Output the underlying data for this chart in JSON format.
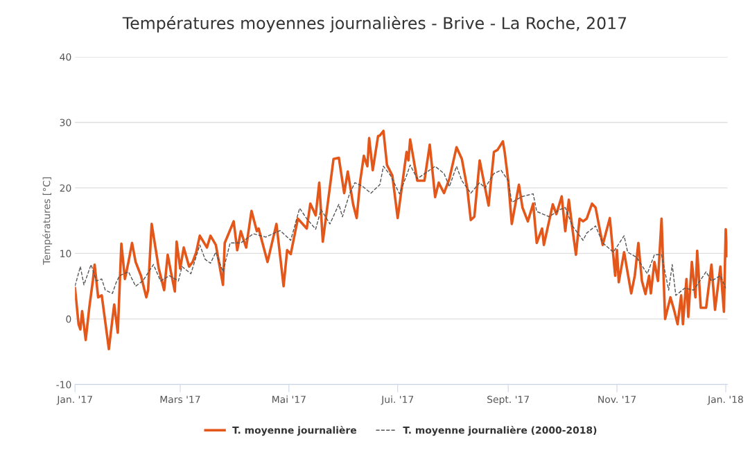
{
  "chart_data": {
    "type": "line",
    "title": "Températures moyennes journalières - Brive - La Roche, 2017",
    "ylabel": "Températures [°C]",
    "xlim": [
      "2017-01-01",
      "2018-01-02"
    ],
    "xticks": [
      {
        "value": "2017-01-01",
        "label": "Jan. '17"
      },
      {
        "value": "2017-03-01",
        "label": "Mars '17"
      },
      {
        "value": "2017-05-01",
        "label": "Mai '17"
      },
      {
        "value": "2017-07-01",
        "label": "Jui. '17"
      },
      {
        "value": "2017-09-01",
        "label": "Sept. '17"
      },
      {
        "value": "2017-11-01",
        "label": "Nov. '17"
      },
      {
        "value": "2018-01-01",
        "label": "Jan. '18"
      }
    ],
    "ylim": [
      -10,
      40
    ],
    "yticks": [
      -10,
      0,
      10,
      20,
      30,
      40
    ],
    "grid": "y",
    "legend": "bottom",
    "series": [
      {
        "name": "T. moyenne journalière",
        "color": "#e4571b",
        "line_style": "solid",
        "x": [
          "2017-01-01",
          "2017-01-03",
          "2017-01-04",
          "2017-01-05",
          "2017-01-07",
          "2017-01-09",
          "2017-01-11",
          "2017-01-12",
          "2017-01-14",
          "2017-01-16",
          "2017-01-20",
          "2017-01-22",
          "2017-01-23",
          "2017-01-25",
          "2017-01-27",
          "2017-01-29",
          "2017-01-31",
          "2017-02-02",
          "2017-02-04",
          "2017-02-07",
          "2017-02-10",
          "2017-02-11",
          "2017-02-13",
          "2017-02-17",
          "2017-02-20",
          "2017-02-22",
          "2017-02-24",
          "2017-02-26",
          "2017-02-27",
          "2017-03-01",
          "2017-03-03",
          "2017-03-06",
          "2017-03-08",
          "2017-03-10",
          "2017-03-12",
          "2017-03-16",
          "2017-03-18",
          "2017-03-21",
          "2017-03-25",
          "2017-03-26",
          "2017-03-31",
          "2017-04-02",
          "2017-04-04",
          "2017-04-07",
          "2017-04-10",
          "2017-04-13",
          "2017-04-14",
          "2017-04-19",
          "2017-04-24",
          "2017-04-28",
          "2017-04-30",
          "2017-05-02",
          "2017-05-06",
          "2017-05-11",
          "2017-05-13",
          "2017-05-16",
          "2017-05-18",
          "2017-05-20",
          "2017-05-23",
          "2017-05-26",
          "2017-05-29",
          "2017-06-01",
          "2017-06-03",
          "2017-06-06",
          "2017-06-08",
          "2017-06-10",
          "2017-06-12",
          "2017-06-14",
          "2017-06-15",
          "2017-06-17",
          "2017-06-20",
          "2017-06-21",
          "2017-06-23",
          "2017-06-25",
          "2017-06-28",
          "2017-07-01",
          "2017-07-06",
          "2017-07-07",
          "2017-07-08",
          "2017-07-12",
          "2017-07-16",
          "2017-07-19",
          "2017-07-22",
          "2017-07-24",
          "2017-07-27",
          "2017-07-30",
          "2017-08-03",
          "2017-08-06",
          "2017-08-09",
          "2017-08-11",
          "2017-08-13",
          "2017-08-16",
          "2017-08-18",
          "2017-08-21",
          "2017-08-24",
          "2017-08-26",
          "2017-08-29",
          "2017-08-30",
          "2017-09-01",
          "2017-09-03",
          "2017-09-07",
          "2017-09-09",
          "2017-09-12",
          "2017-09-15",
          "2017-09-17",
          "2017-09-20",
          "2017-09-21",
          "2017-09-26",
          "2017-09-28",
          "2017-10-01",
          "2017-10-03",
          "2017-10-05",
          "2017-10-07",
          "2017-10-09",
          "2017-10-11",
          "2017-10-13",
          "2017-10-15",
          "2017-10-18",
          "2017-10-20",
          "2017-10-24",
          "2017-10-28",
          "2017-10-31",
          "2017-11-01",
          "2017-11-02",
          "2017-11-05",
          "2017-11-09",
          "2017-11-11",
          "2017-11-13",
          "2017-11-15",
          "2017-11-17",
          "2017-11-19",
          "2017-11-20",
          "2017-11-22",
          "2017-11-24",
          "2017-11-26",
          "2017-11-28",
          "2017-12-01",
          "2017-12-03",
          "2017-12-05",
          "2017-12-07",
          "2017-12-08",
          "2017-12-10",
          "2017-12-11",
          "2017-12-13",
          "2017-12-15",
          "2017-12-16",
          "2017-12-18",
          "2017-12-21",
          "2017-12-24",
          "2017-12-26",
          "2017-12-29",
          "2017-12-31",
          "2018-01-01",
          "2018-01-02"
        ],
        "values": [
          4.7,
          -0.8,
          -1.6,
          1.2,
          -3.2,
          1.7,
          5.8,
          8.3,
          3.3,
          3.6,
          -4.6,
          0.0,
          2.2,
          -2.1,
          11.5,
          6.1,
          8.7,
          11.6,
          8.7,
          6.6,
          3.3,
          4.4,
          14.5,
          7.7,
          4.4,
          9.8,
          6.9,
          4.2,
          11.8,
          7.7,
          10.9,
          8.0,
          8.7,
          10.2,
          12.7,
          10.9,
          12.7,
          11.3,
          5.2,
          11.6,
          14.9,
          10.5,
          13.4,
          10.9,
          16.5,
          13.4,
          13.8,
          8.7,
          14.5,
          5.0,
          10.5,
          9.9,
          15.3,
          13.8,
          17.6,
          15.8,
          20.8,
          11.8,
          18.1,
          24.4,
          24.6,
          19.2,
          22.5,
          17.5,
          15.4,
          21.1,
          24.9,
          23.3,
          27.6,
          22.7,
          27.9,
          28.0,
          28.7,
          23.5,
          21.9,
          15.4,
          25.5,
          24.2,
          27.4,
          21.1,
          21.1,
          26.6,
          18.6,
          20.8,
          19.2,
          21.4,
          26.2,
          24.4,
          20.0,
          15.1,
          15.6,
          24.2,
          21.4,
          17.3,
          25.5,
          25.8,
          27.1,
          25.5,
          21.1,
          14.5,
          20.5,
          17.0,
          14.9,
          17.6,
          11.6,
          13.8,
          11.3,
          17.5,
          16.0,
          18.7,
          13.4,
          18.2,
          13.8,
          9.8,
          15.3,
          14.9,
          15.3,
          17.6,
          17.0,
          11.3,
          15.4,
          6.6,
          10.5,
          5.6,
          10.2,
          3.9,
          6.6,
          11.6,
          5.8,
          3.8,
          6.6,
          3.9,
          8.7,
          5.8,
          15.3,
          0.0,
          3.3,
          1.4,
          -0.8,
          3.6,
          -0.8,
          6.1,
          0.3,
          8.7,
          3.3,
          10.4,
          1.7,
          1.7,
          8.3,
          1.4,
          8.0,
          1.1,
          13.7,
          9.6
        ]
      },
      {
        "name": "T. moyenne journalière (2000-2018)",
        "color": "#555555",
        "line_style": "dashed",
        "x": [
          "2017-01-01",
          "2017-01-04",
          "2017-01-06",
          "2017-01-10",
          "2017-01-13",
          "2017-01-16",
          "2017-01-18",
          "2017-01-22",
          "2017-01-24",
          "2017-01-26",
          "2017-01-31",
          "2017-02-04",
          "2017-02-08",
          "2017-02-14",
          "2017-02-18",
          "2017-02-23",
          "2017-02-28",
          "2017-03-02",
          "2017-03-07",
          "2017-03-12",
          "2017-03-15",
          "2017-03-18",
          "2017-03-21",
          "2017-03-25",
          "2017-03-29",
          "2017-04-04",
          "2017-04-11",
          "2017-04-18",
          "2017-04-26",
          "2017-05-02",
          "2017-05-07",
          "2017-05-11",
          "2017-05-16",
          "2017-05-19",
          "2017-05-24",
          "2017-05-29",
          "2017-05-31",
          "2017-06-04",
          "2017-06-07",
          "2017-06-11",
          "2017-06-16",
          "2017-06-21",
          "2017-06-23",
          "2017-06-27",
          "2017-07-02",
          "2017-07-06",
          "2017-07-08",
          "2017-07-12",
          "2017-07-22",
          "2017-07-27",
          "2017-07-30",
          "2017-08-03",
          "2017-08-06",
          "2017-08-11",
          "2017-08-16",
          "2017-08-19",
          "2017-08-24",
          "2017-08-28",
          "2017-09-01",
          "2017-09-03",
          "2017-09-09",
          "2017-09-15",
          "2017-09-17",
          "2017-09-24",
          "2017-09-30",
          "2017-10-03",
          "2017-10-07",
          "2017-10-13",
          "2017-10-15",
          "2017-10-20",
          "2017-10-24",
          "2017-10-30",
          "2017-11-05",
          "2017-11-07",
          "2017-11-12",
          "2017-11-18",
          "2017-11-22",
          "2017-11-26",
          "2017-11-30",
          "2017-12-02",
          "2017-12-04",
          "2017-12-09",
          "2017-12-14",
          "2017-12-21",
          "2017-12-24",
          "2017-12-29",
          "2018-01-01"
        ],
        "values": [
          5.0,
          8.0,
          5.2,
          8.3,
          5.8,
          6.1,
          4.4,
          3.9,
          5.5,
          6.6,
          7.2,
          5.0,
          5.8,
          8.3,
          5.8,
          6.6,
          5.8,
          8.0,
          6.9,
          11.3,
          9.1,
          8.5,
          10.2,
          7.2,
          11.6,
          11.6,
          13.0,
          12.5,
          13.5,
          12.0,
          16.9,
          15.3,
          13.7,
          16.7,
          14.5,
          17.5,
          15.6,
          19.1,
          20.8,
          20.3,
          19.2,
          20.5,
          23.3,
          21.9,
          19.1,
          21.9,
          23.5,
          21.4,
          23.3,
          22.2,
          20.2,
          23.3,
          21.1,
          19.2,
          20.8,
          20.0,
          22.2,
          22.7,
          21.1,
          17.8,
          18.7,
          19.1,
          16.4,
          15.6,
          16.7,
          17.0,
          14.2,
          12.0,
          13.1,
          14.2,
          11.6,
          10.2,
          12.7,
          10.2,
          9.4,
          6.9,
          9.8,
          9.8,
          4.4,
          8.3,
          3.6,
          4.7,
          4.4,
          7.2,
          5.8,
          6.6,
          4.7
        ]
      }
    ]
  }
}
